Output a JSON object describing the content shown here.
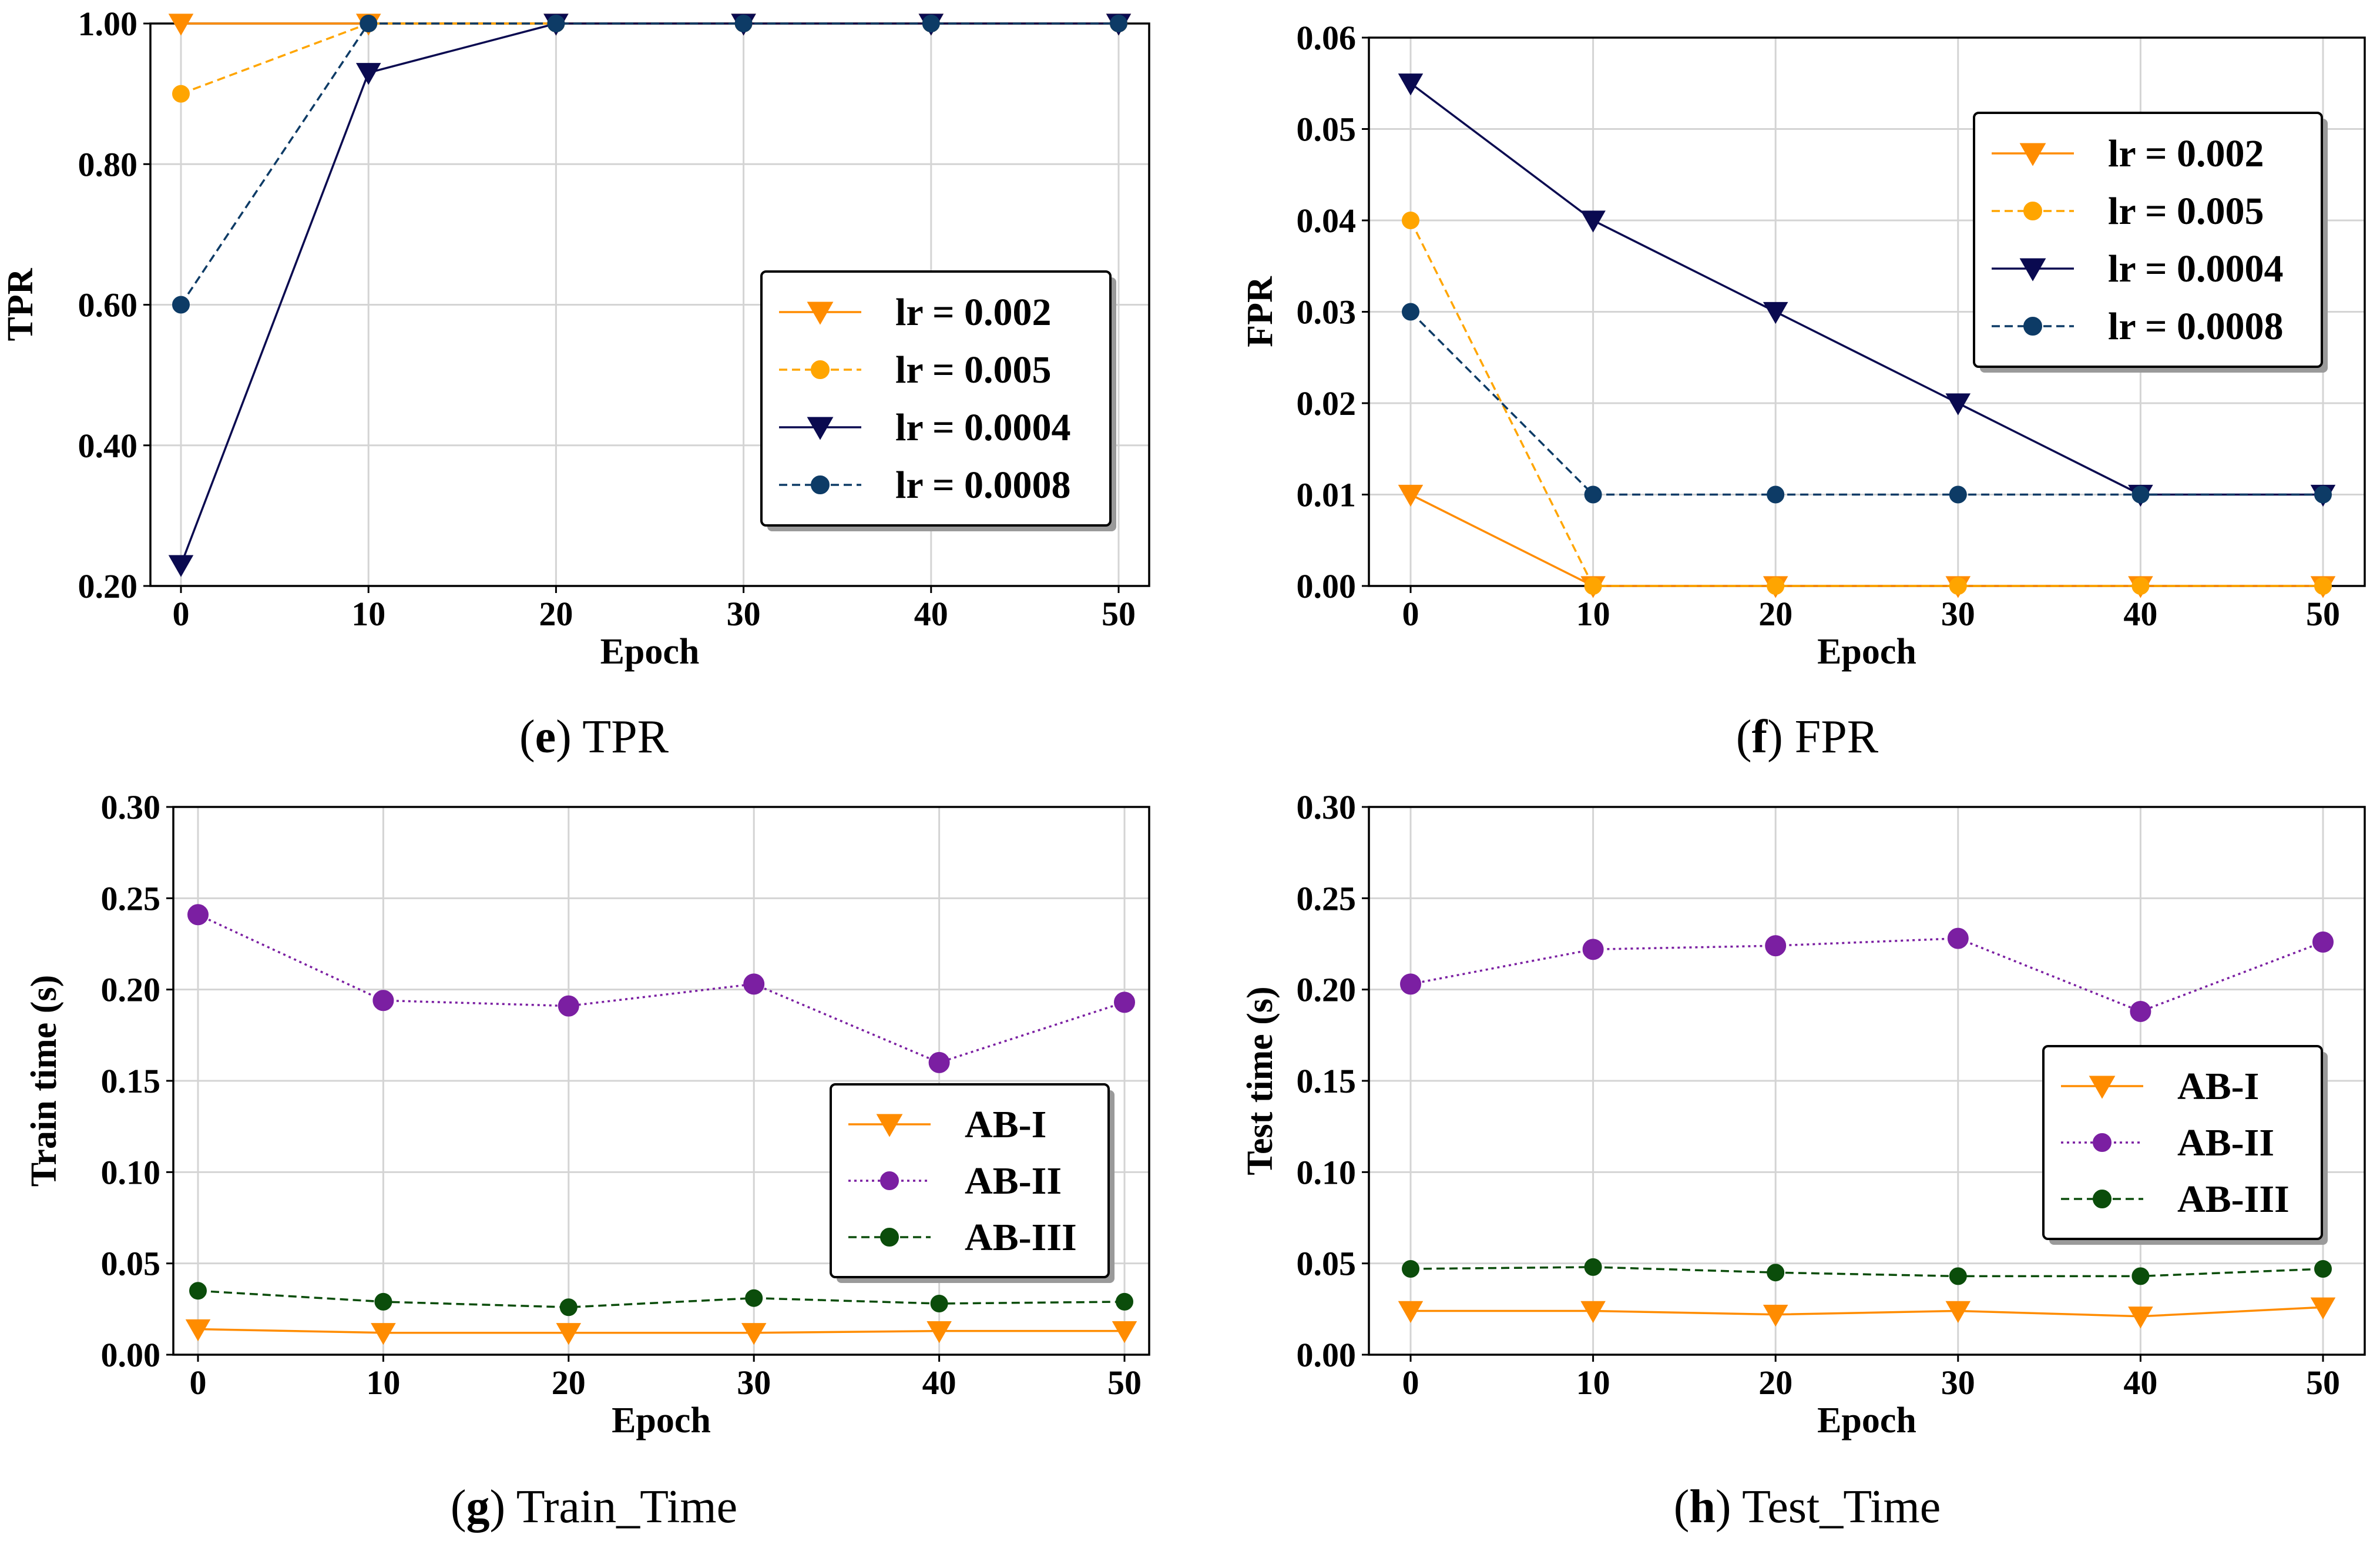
{
  "chart_data": [
    {
      "type": "line",
      "panel_label": "e",
      "caption": "TPR",
      "xlabel": "Epoch",
      "ylabel": "TPR",
      "x": [
        0,
        10,
        20,
        30,
        40,
        50
      ],
      "xticks": [
        "0",
        "10",
        "20",
        "30",
        "40",
        "50"
      ],
      "ylim": [
        0.2,
        1.0
      ],
      "yticks": [
        "0.20",
        "0.40",
        "0.60",
        "0.80",
        "1.00"
      ],
      "ytick_values": [
        0.2,
        0.4,
        0.6,
        0.8,
        1.0
      ],
      "grid": true,
      "legend_position": "center-right",
      "series": [
        {
          "name": "lr = 0.002",
          "values": [
            1.0,
            1.0,
            1.0,
            1.0,
            1.0,
            1.0
          ],
          "color": "#ff8c00",
          "marker": "triangle-down",
          "dash": "solid"
        },
        {
          "name": "lr = 0.005",
          "values": [
            0.9,
            1.0,
            1.0,
            1.0,
            1.0,
            1.0
          ],
          "color": "#ffa500",
          "marker": "circle",
          "dash": "dashed"
        },
        {
          "name": "lr = 0.0004",
          "values": [
            0.23,
            0.93,
            1.0,
            1.0,
            1.0,
            1.0
          ],
          "color": "#0a0a50",
          "marker": "triangle-down",
          "dash": "solid"
        },
        {
          "name": "lr = 0.0008",
          "values": [
            0.6,
            1.0,
            1.0,
            1.0,
            1.0,
            1.0
          ],
          "color": "#0d3b66",
          "marker": "circle",
          "dash": "dashed"
        }
      ]
    },
    {
      "type": "line",
      "panel_label": "f",
      "caption": "FPR",
      "xlabel": "Epoch",
      "ylabel": "FPR",
      "x": [
        0,
        10,
        20,
        30,
        40,
        50
      ],
      "xticks": [
        "0",
        "10",
        "20",
        "30",
        "40",
        "50"
      ],
      "ylim": [
        0.0,
        0.06
      ],
      "yticks": [
        "0.00",
        "0.01",
        "0.02",
        "0.03",
        "0.04",
        "0.05",
        "0.06"
      ],
      "ytick_values": [
        0.0,
        0.01,
        0.02,
        0.03,
        0.04,
        0.05,
        0.06
      ],
      "grid": true,
      "legend_position": "top-right",
      "series": [
        {
          "name": "lr = 0.002",
          "values": [
            0.01,
            0.0,
            0.0,
            0.0,
            0.0,
            0.0
          ],
          "color": "#ff8c00",
          "marker": "triangle-down",
          "dash": "solid"
        },
        {
          "name": "lr = 0.005",
          "values": [
            0.04,
            0.0,
            0.0,
            0.0,
            0.0,
            0.0
          ],
          "color": "#ffa500",
          "marker": "circle",
          "dash": "dashed"
        },
        {
          "name": "lr = 0.0004",
          "values": [
            0.055,
            0.04,
            0.03,
            0.02,
            0.01,
            0.01
          ],
          "color": "#0a0a50",
          "marker": "triangle-down",
          "dash": "solid"
        },
        {
          "name": "lr = 0.0008",
          "values": [
            0.03,
            0.01,
            0.01,
            0.01,
            0.01,
            0.01
          ],
          "color": "#0d3b66",
          "marker": "circle",
          "dash": "dashed"
        }
      ]
    },
    {
      "type": "line",
      "panel_label": "g",
      "caption": "Train_Time",
      "xlabel": "Epoch",
      "ylabel": "Train time (s)",
      "x": [
        0,
        10,
        20,
        30,
        40,
        50
      ],
      "xticks": [
        "0",
        "10",
        "20",
        "30",
        "40",
        "50"
      ],
      "ylim": [
        0.0,
        0.3
      ],
      "yticks": [
        "0.00",
        "0.05",
        "0.10",
        "0.15",
        "0.20",
        "0.25",
        "0.30"
      ],
      "ytick_values": [
        0.0,
        0.05,
        0.1,
        0.15,
        0.2,
        0.25,
        0.3
      ],
      "grid": true,
      "legend_position": "center-right",
      "series": [
        {
          "name": "AB-I",
          "values": [
            0.014,
            0.012,
            0.012,
            0.012,
            0.013,
            0.013
          ],
          "color": "#ff8c00",
          "marker": "triangle-down",
          "dash": "solid"
        },
        {
          "name": "AB-II",
          "values": [
            0.241,
            0.194,
            0.191,
            0.203,
            0.16,
            0.193
          ],
          "color": "#7b1fa2",
          "marker": "circle",
          "dash": "dotted"
        },
        {
          "name": "AB-III",
          "values": [
            0.035,
            0.029,
            0.026,
            0.031,
            0.028,
            0.029
          ],
          "color": "#0b4d0b",
          "marker": "circle",
          "dash": "dashed"
        }
      ]
    },
    {
      "type": "line",
      "panel_label": "h",
      "caption": "Test_Time",
      "xlabel": "Epoch",
      "ylabel": "Test time (s)",
      "x": [
        0,
        10,
        20,
        30,
        40,
        50
      ],
      "xticks": [
        "0",
        "10",
        "20",
        "30",
        "40",
        "50"
      ],
      "ylim": [
        0.0,
        0.3
      ],
      "yticks": [
        "0.00",
        "0.05",
        "0.10",
        "0.15",
        "0.20",
        "0.25",
        "0.30"
      ],
      "ytick_values": [
        0.0,
        0.05,
        0.1,
        0.15,
        0.2,
        0.25,
        0.3
      ],
      "grid": true,
      "legend_position": "center-right",
      "series": [
        {
          "name": "AB-I",
          "values": [
            0.024,
            0.024,
            0.022,
            0.024,
            0.021,
            0.026
          ],
          "color": "#ff8c00",
          "marker": "triangle-down",
          "dash": "solid"
        },
        {
          "name": "AB-II",
          "values": [
            0.203,
            0.222,
            0.224,
            0.228,
            0.188,
            0.226
          ],
          "color": "#7b1fa2",
          "marker": "circle",
          "dash": "dotted"
        },
        {
          "name": "AB-III",
          "values": [
            0.047,
            0.048,
            0.045,
            0.043,
            0.043,
            0.047
          ],
          "color": "#0b4d0b",
          "marker": "circle",
          "dash": "dashed"
        }
      ]
    }
  ]
}
